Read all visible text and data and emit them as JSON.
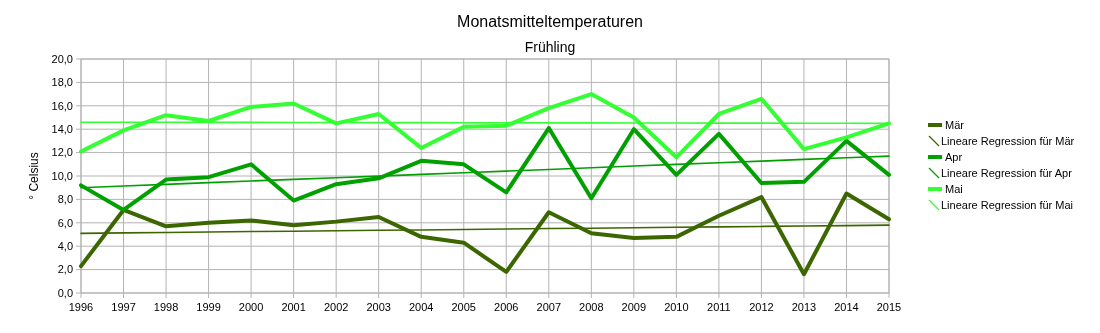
{
  "chart_data": {
    "type": "line",
    "title": "Monatsmitteltemperaturen",
    "subtitle": "Frühling",
    "ylabel": "° Celsius",
    "x": [
      1996,
      1997,
      1998,
      1999,
      2000,
      2001,
      2002,
      2003,
      2004,
      2005,
      2006,
      2007,
      2008,
      2009,
      2010,
      2011,
      2012,
      2013,
      2014,
      2015
    ],
    "xlim": [
      1996,
      2015
    ],
    "xticks": [
      1996,
      1997,
      1998,
      1999,
      2000,
      2001,
      2002,
      2003,
      2004,
      2005,
      2006,
      2007,
      2008,
      2009,
      2010,
      2011,
      2012,
      2013,
      2014,
      2015
    ],
    "ylim": [
      0,
      20
    ],
    "yticks": [
      {
        "value": 0,
        "label": "0,0"
      },
      {
        "value": 2,
        "label": "2,0"
      },
      {
        "value": 4,
        "label": "4,0"
      },
      {
        "value": 6,
        "label": "6,0"
      },
      {
        "value": 8,
        "label": "8,0"
      },
      {
        "value": 10,
        "label": "10,0"
      },
      {
        "value": 12,
        "label": "12,0"
      },
      {
        "value": 14,
        "label": "14,0"
      },
      {
        "value": 16,
        "label": "16,0"
      },
      {
        "value": 18,
        "label": "18,0"
      },
      {
        "value": 20,
        "label": "20,0"
      }
    ],
    "grid": true,
    "legend": "right",
    "line_style": "solid",
    "series": [
      {
        "name": "Mär",
        "color": "#3c6600",
        "values": [
          2.3,
          7.1,
          5.7,
          6.0,
          6.2,
          5.8,
          6.1,
          6.5,
          4.8,
          4.3,
          1.8,
          6.9,
          5.1,
          4.7,
          4.8,
          6.6,
          8.2,
          1.6,
          8.5,
          6.3
        ]
      },
      {
        "name": "Lineare Regression für  Mär",
        "type": "line",
        "color": "#3c6600",
        "values": [
          5.1,
          5.14,
          5.17,
          5.21,
          5.25,
          5.28,
          5.32,
          5.36,
          5.39,
          5.43,
          5.47,
          5.51,
          5.54,
          5.58,
          5.62,
          5.65,
          5.69,
          5.73,
          5.76,
          5.8
        ]
      },
      {
        "name": "Apr",
        "color": "#00a000",
        "values": [
          9.2,
          7.1,
          9.7,
          9.9,
          11.0,
          7.9,
          9.3,
          9.8,
          11.3,
          11.0,
          8.6,
          14.1,
          8.1,
          14.0,
          10.1,
          13.6,
          9.4,
          9.5,
          13.0,
          10.1
        ]
      },
      {
        "name": "Lineare Regression für  Apr",
        "type": "line",
        "color": "#00a000",
        "values": [
          9.0,
          9.14,
          9.28,
          9.43,
          9.57,
          9.71,
          9.85,
          9.99,
          10.14,
          10.28,
          10.42,
          10.56,
          10.71,
          10.85,
          10.99,
          11.13,
          11.27,
          11.42,
          11.56,
          11.7
        ]
      },
      {
        "name": "Mai",
        "color": "#33ff33",
        "values": [
          12.1,
          13.9,
          15.2,
          14.7,
          15.9,
          16.2,
          14.5,
          15.3,
          12.4,
          14.2,
          14.3,
          15.8,
          17.0,
          15.0,
          11.6,
          15.3,
          16.6,
          12.3,
          13.3,
          14.5
        ]
      },
      {
        "name": "Lineare Regression für  Mai",
        "type": "line",
        "color": "#33ff33",
        "values": [
          14.6,
          14.59,
          14.59,
          14.58,
          14.58,
          14.57,
          14.57,
          14.56,
          14.56,
          14.55,
          14.55,
          14.54,
          14.54,
          14.53,
          14.53,
          14.52,
          14.52,
          14.51,
          14.51,
          14.5
        ]
      }
    ]
  }
}
